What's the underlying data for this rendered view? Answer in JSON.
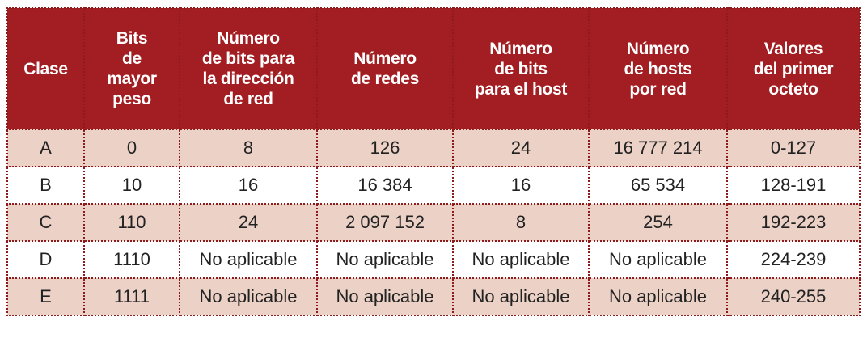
{
  "headers": [
    "Clase",
    "Bits\nde\nmayor\npeso",
    "Número\nde bits para\nla dirección\nde red",
    "Número\nde redes",
    "Número\nde bits\npara el host",
    "Número\nde hosts\npor red",
    "Valores\ndel primer\nocteto"
  ],
  "rows": [
    [
      "A",
      "0",
      "8",
      "126",
      "24",
      "16 777 214",
      "0-127"
    ],
    [
      "B",
      "10",
      "16",
      "16 384",
      "16",
      "65 534",
      "128-191"
    ],
    [
      "C",
      "110",
      "24",
      "2 097 152",
      "8",
      "254",
      "192-223"
    ],
    [
      "D",
      "1110",
      "No aplicable",
      "No aplicable",
      "No aplicable",
      "No aplicable",
      "224-239"
    ],
    [
      "E",
      "1111",
      "No aplicable",
      "No aplicable",
      "No aplicable",
      "No aplicable",
      "240-255"
    ]
  ],
  "colors": {
    "header_bg": "#a31e22",
    "row_shade": "#ecd1c6",
    "border": "#8e1b1b"
  }
}
